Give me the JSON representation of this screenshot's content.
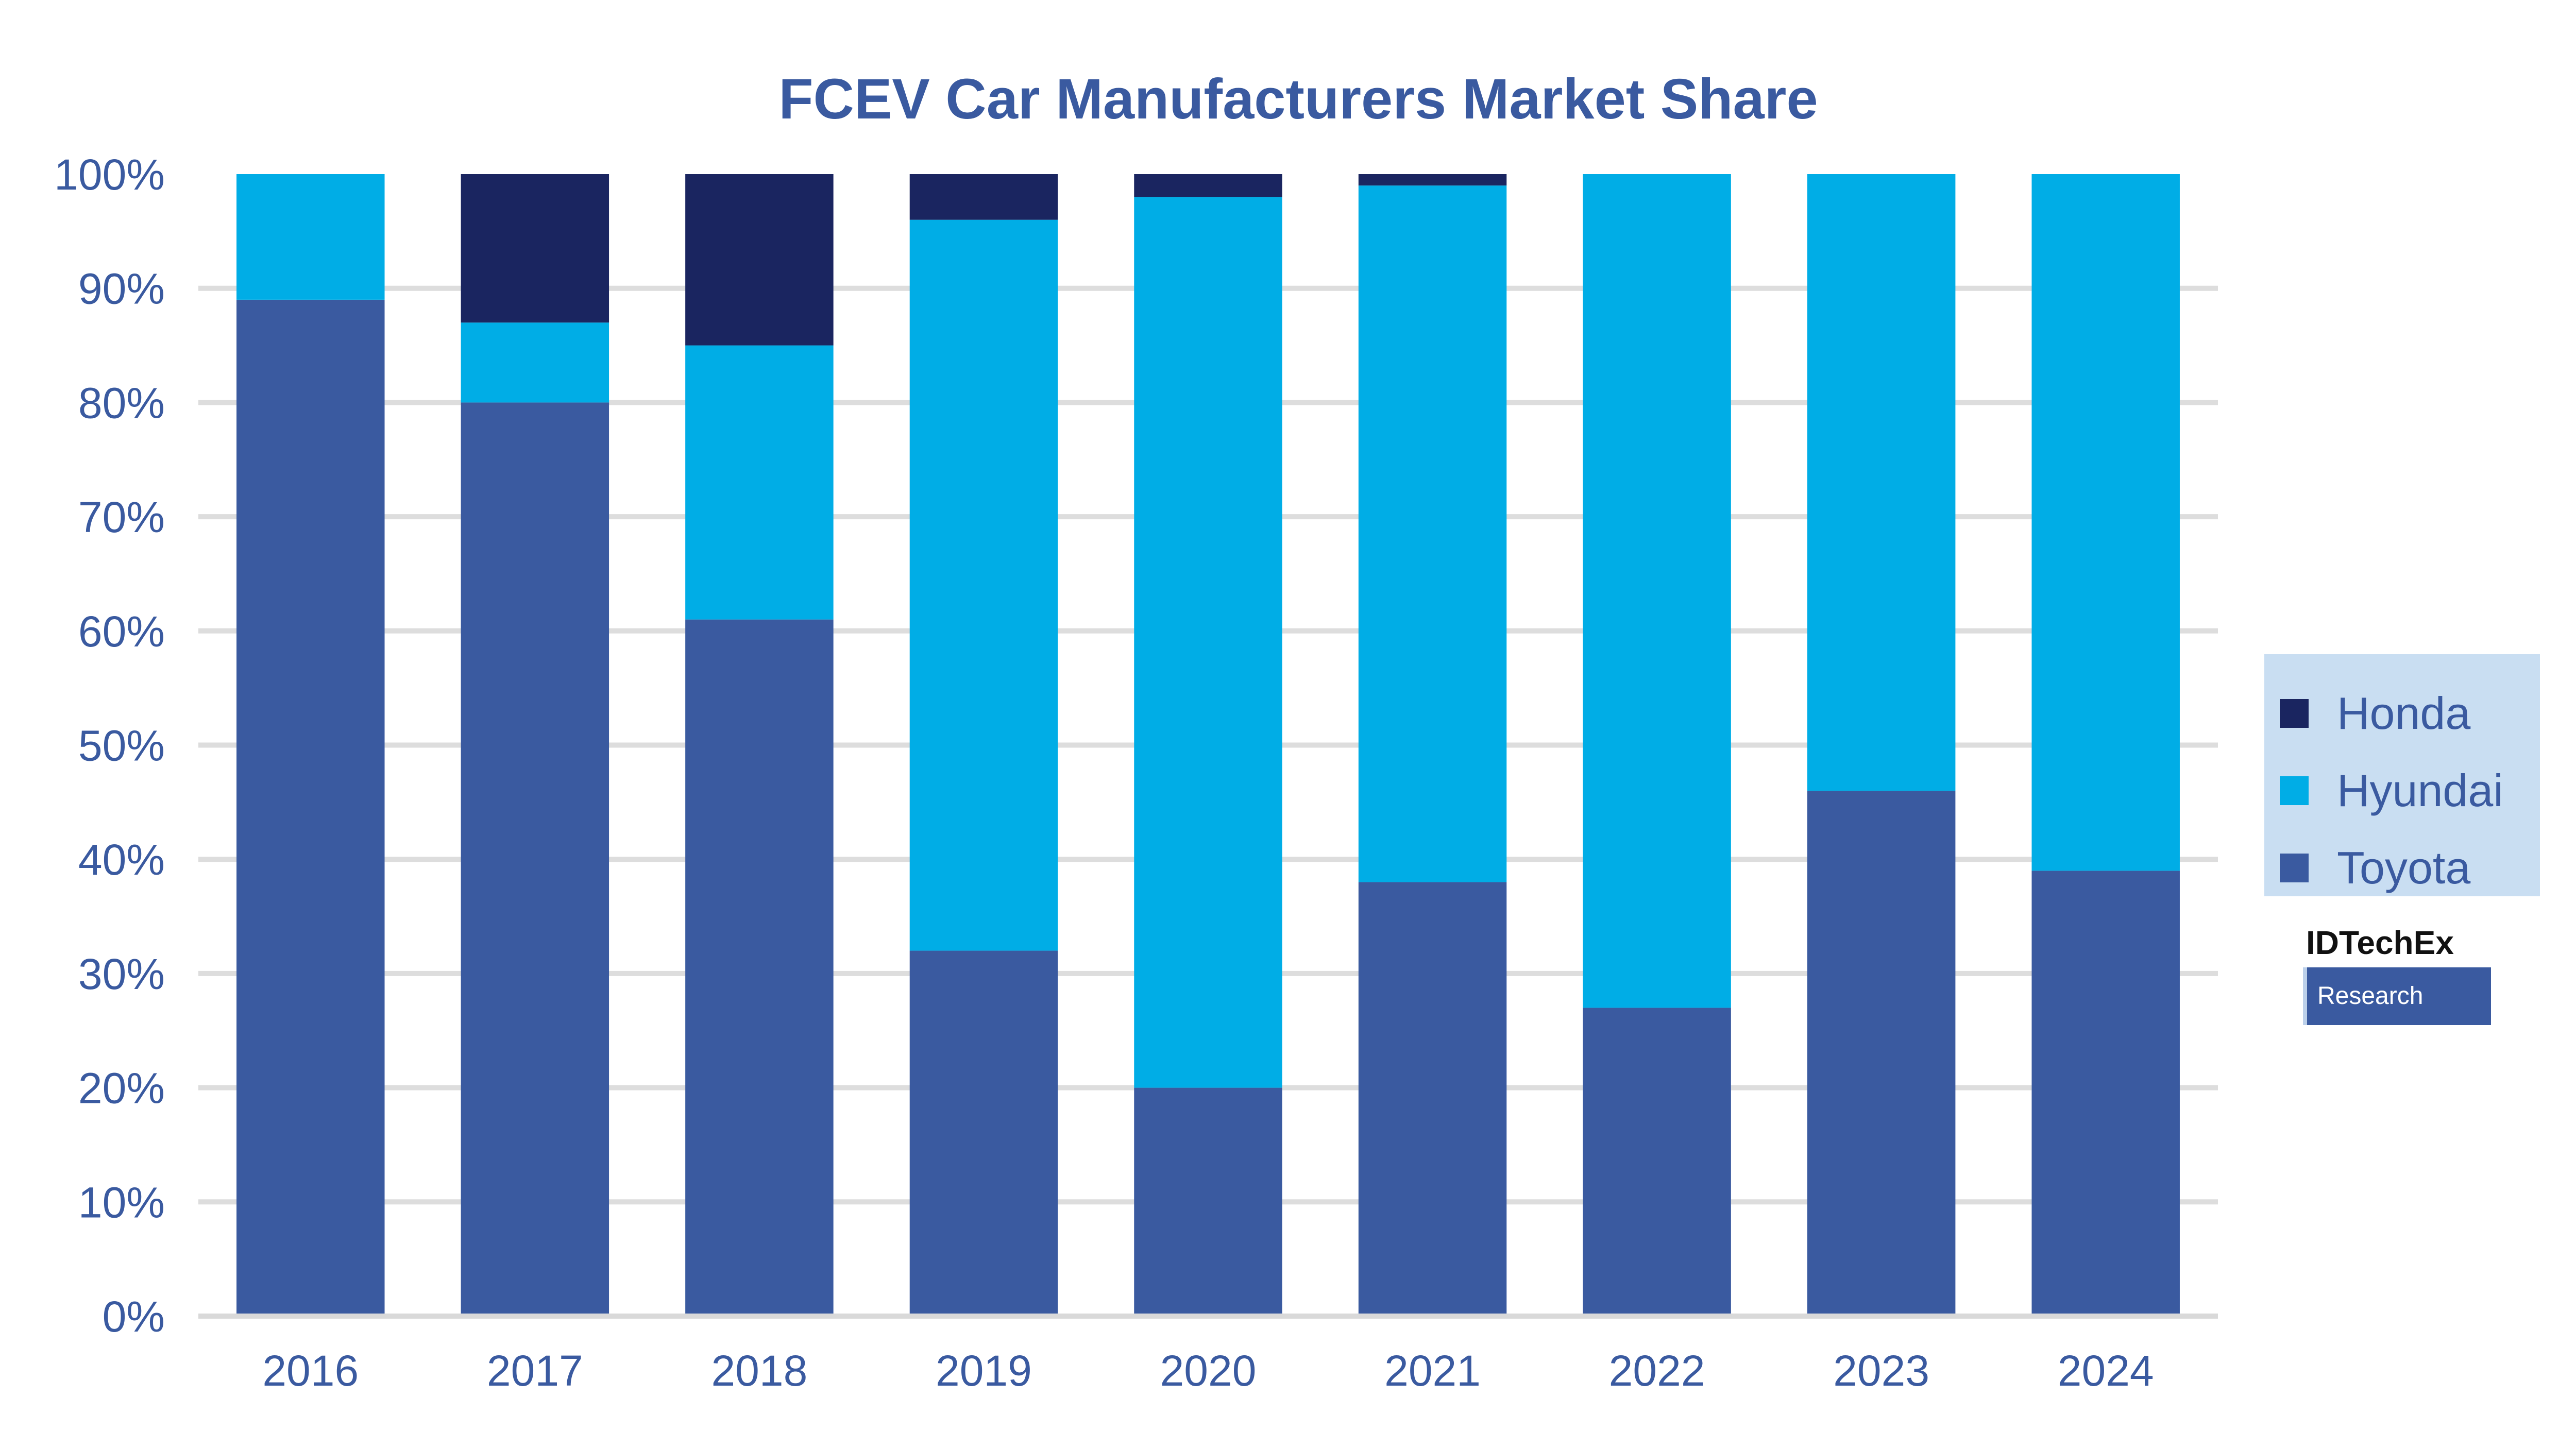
{
  "chart_data": {
    "type": "bar",
    "stacked": true,
    "title": "FCEV Car Manufacturers Market Share",
    "categories": [
      "2016",
      "2017",
      "2018",
      "2019",
      "2020",
      "2021",
      "2022",
      "2023",
      "2024"
    ],
    "series": [
      {
        "name": "Toyota",
        "color": "#3a5aa0",
        "values": [
          89,
          80,
          61,
          32,
          20,
          38,
          27,
          46,
          39
        ]
      },
      {
        "name": "Hyundai",
        "color": "#00ade6",
        "values": [
          11,
          7,
          24,
          64,
          78,
          61,
          73,
          54,
          61
        ]
      },
      {
        "name": "Honda",
        "color": "#1a2560",
        "values": [
          0,
          13,
          15,
          4,
          2,
          1,
          0,
          0,
          0
        ]
      }
    ],
    "y_ticks": [
      "0%",
      "10%",
      "20%",
      "30%",
      "40%",
      "50%",
      "60%",
      "70%",
      "80%",
      "90%",
      "100%"
    ],
    "ylim": [
      0,
      100
    ],
    "gridlines": true,
    "legend_position": "right",
    "legend": [
      "Honda",
      "Hyundai",
      "Toyota"
    ]
  },
  "logo": {
    "top_text": "IDTechEx",
    "bottom_text": "Research"
  }
}
